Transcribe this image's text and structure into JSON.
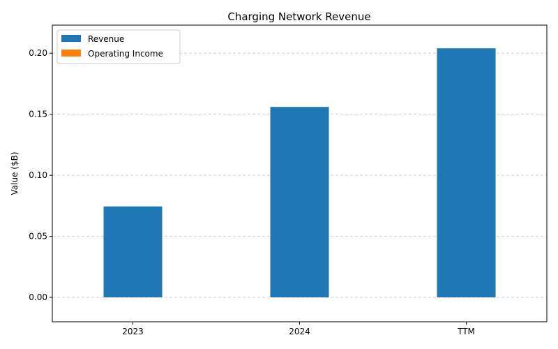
{
  "chart_data": {
    "type": "bar",
    "title": "Charging Network Revenue",
    "xlabel": "",
    "ylabel": "Value ($B)",
    "categories": [
      "2023",
      "2024",
      "TTM"
    ],
    "series": [
      {
        "name": "Revenue",
        "values": [
          0.0745,
          0.156,
          0.204
        ],
        "color": "#1f77b4"
      },
      {
        "name": "Operating Income",
        "values": [
          0,
          0,
          0
        ],
        "color": "#ff7f0e"
      }
    ],
    "ylim": [
      -0.02,
      0.223
    ],
    "yticks": [
      0.0,
      0.05,
      0.1,
      0.15,
      0.2
    ],
    "ytick_labels": [
      "0.00",
      "0.05",
      "0.10",
      "0.15",
      "0.20"
    ],
    "grid": "y-dashed",
    "legend_position": "top-left"
  }
}
